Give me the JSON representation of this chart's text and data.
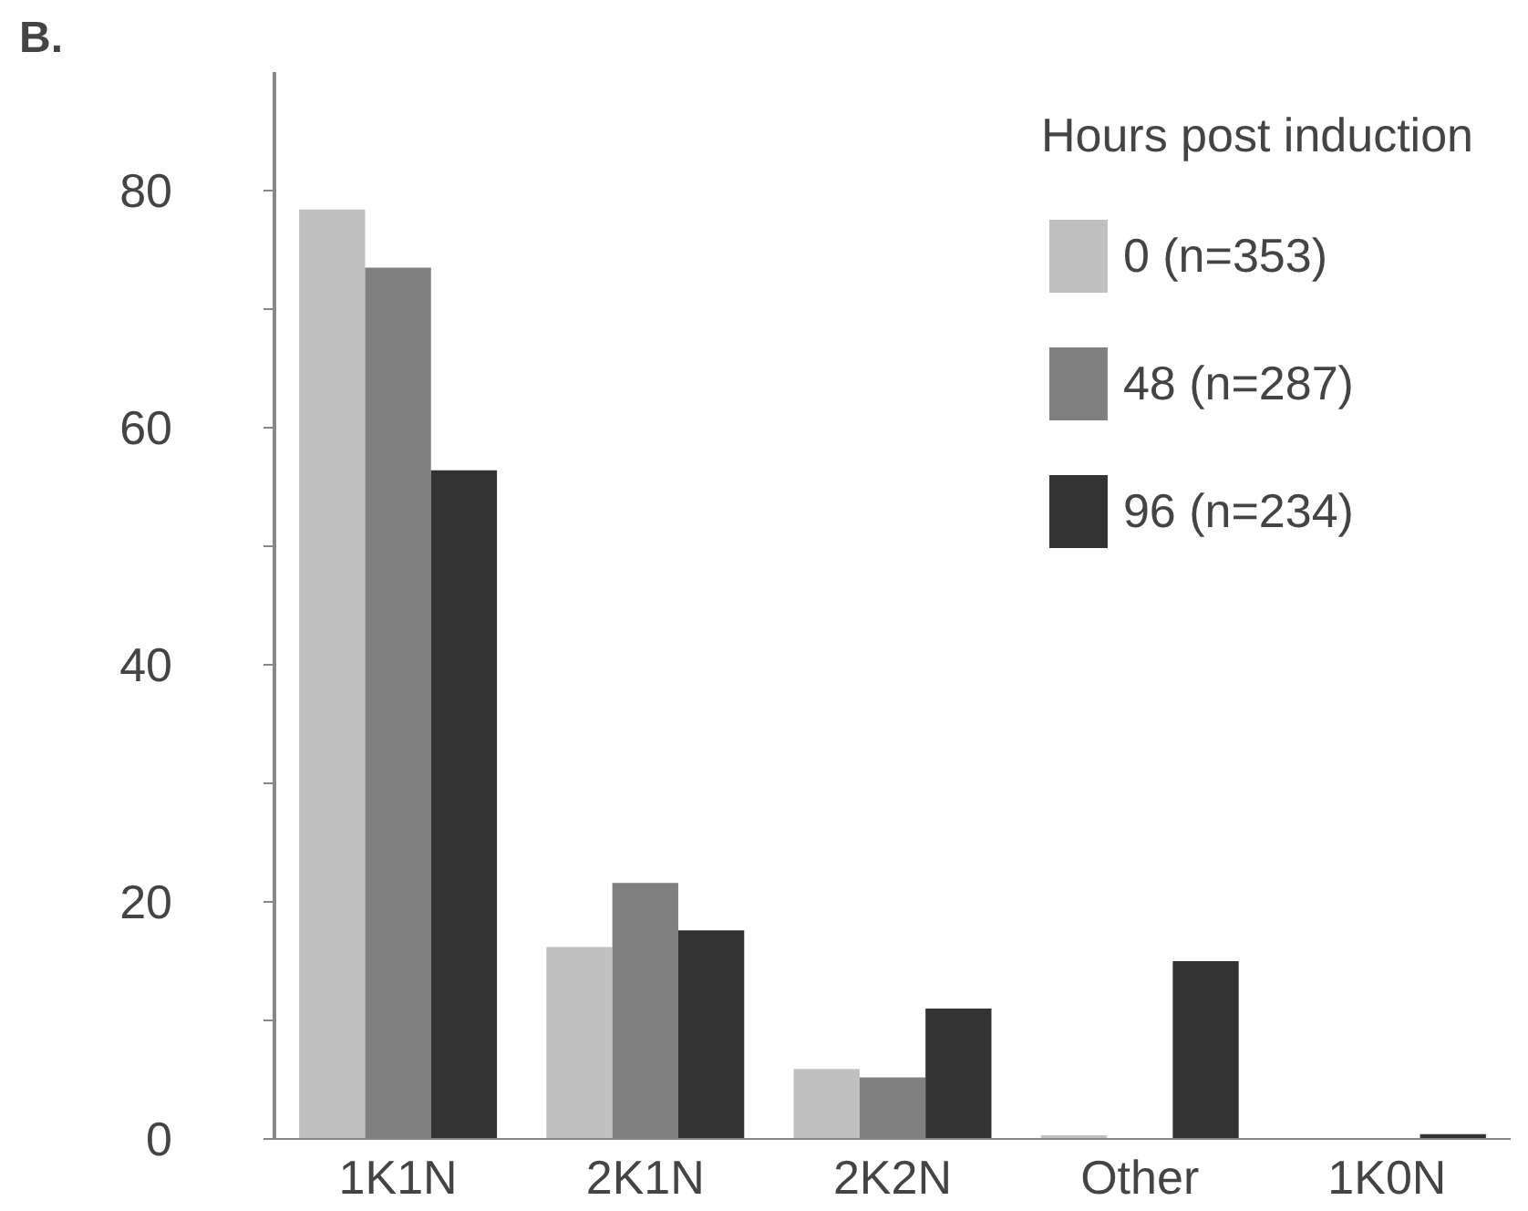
{
  "chart_data": {
    "type": "bar",
    "title": "B.",
    "legend_title": "Hours post induction",
    "categories": [
      "1K1N",
      "2K1N",
      "2K2N",
      "Other",
      "1K0N"
    ],
    "series": [
      {
        "name": "0 (n=353)",
        "color": "#c0c0c0",
        "values": [
          78.4,
          16.2,
          5.9,
          0.3,
          0
        ]
      },
      {
        "name": "48 (n=287)",
        "color": "#808080",
        "values": [
          73.5,
          21.6,
          5.2,
          0,
          0
        ]
      },
      {
        "name": "96 (n=234)",
        "color": "#333333",
        "values": [
          56.4,
          17.6,
          11.0,
          15.0,
          0.4
        ]
      }
    ],
    "ylim": [
      0,
      90
    ],
    "yticks": [
      0,
      {
        "value": 10,
        "label": null
      },
      20,
      {
        "value": 30,
        "label": null
      },
      40,
      {
        "value": 50,
        "label": null
      },
      60,
      {
        "value": 70,
        "label": null
      },
      80
    ],
    "grid": false,
    "legend": "top right"
  }
}
